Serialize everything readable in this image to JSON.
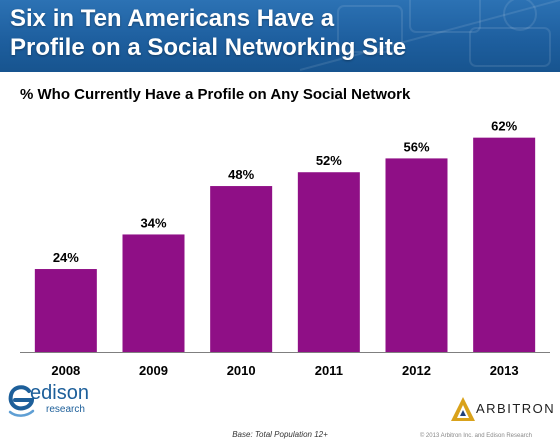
{
  "header": {
    "title": "Six in Ten Americans Have a\nProfile on a Social Networking Site",
    "background_color": "#1e5f9f"
  },
  "chart_data": {
    "type": "bar",
    "title": "Six in Ten Americans Have a Profile on a Social Networking Site",
    "subtitle": "% Who Currently Have a Profile on Any Social Network",
    "categories": [
      "2008",
      "2009",
      "2010",
      "2011",
      "2012",
      "2013"
    ],
    "values": [
      24,
      34,
      48,
      52,
      56,
      62
    ],
    "value_labels": [
      "24%",
      "34%",
      "48%",
      "52%",
      "56%",
      "62%"
    ],
    "xlabel": "",
    "ylabel": "",
    "ylim": [
      0,
      70
    ],
    "grid": false,
    "legend": "none",
    "bar_color": "#8f0f86"
  },
  "footer": {
    "base_note": "Base: Total Population 12+",
    "copyright": "© 2013 Arbitron Inc. and Edison Research"
  },
  "logos": {
    "edison": {
      "word": "edison",
      "sub": "research",
      "color": "#1d5f9a"
    },
    "arbitron": {
      "word": "ARBITRON",
      "mark_color": "#d9a21b"
    }
  }
}
